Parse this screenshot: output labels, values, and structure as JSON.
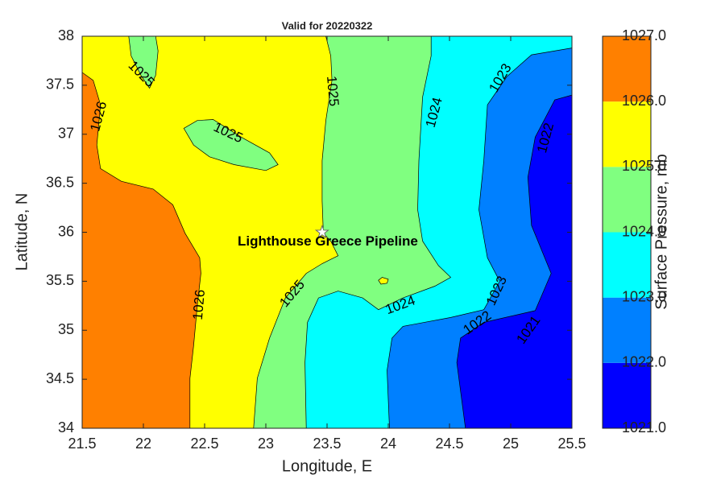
{
  "chart_data": {
    "type": "contour",
    "title": "Valid for 20220322",
    "x_label": "Longitude, E",
    "y_label": "Latitude, N",
    "xlim": [
      21.5,
      25.5
    ],
    "ylim": [
      34,
      38
    ],
    "xticks": [
      21.5,
      22,
      22.5,
      23,
      23.5,
      24,
      24.5,
      25,
      25.5
    ],
    "yticks": [
      34,
      34.5,
      35,
      35.5,
      36,
      36.5,
      37,
      37.5,
      38
    ],
    "colorbar": {
      "label": "Surface Pressure, mb",
      "ticks": [
        {
          "value": 1021,
          "label": "1021.0"
        },
        {
          "value": 1022,
          "label": "1022.0"
        },
        {
          "value": 1023,
          "label": "1023.0"
        },
        {
          "value": 1024,
          "label": "1024.0"
        },
        {
          "value": 1025,
          "label": "1025.0"
        },
        {
          "value": 1026,
          "label": "1026.0"
        },
        {
          "value": 1027,
          "label": "1027.0"
        }
      ],
      "colors": [
        "#0000ff",
        "#0080ff",
        "#00ffff",
        "#80ff80",
        "#ffff00",
        "#ff8000"
      ]
    },
    "regions": [
      {
        "level": 1021,
        "polygon": [
          [
            21.5,
            38
          ],
          [
            25.5,
            38
          ],
          [
            25.5,
            34
          ],
          [
            21.5,
            34
          ]
        ]
      },
      {
        "level": 1022,
        "polygon": [
          [
            21.5,
            38
          ],
          [
            25.5,
            38
          ],
          [
            25.5,
            37.4
          ],
          [
            25.36,
            37.35
          ],
          [
            25.2,
            36.97
          ],
          [
            25.14,
            36.56
          ],
          [
            25.17,
            36.07
          ],
          [
            25.33,
            35.58
          ],
          [
            25.2,
            35.2
          ],
          [
            24.78,
            35.08
          ],
          [
            24.59,
            34.92
          ],
          [
            24.56,
            34.67
          ],
          [
            24.63,
            34
          ],
          [
            21.5,
            34
          ]
        ]
      },
      {
        "level": 1023,
        "polygon": [
          [
            21.5,
            38
          ],
          [
            25.5,
            38
          ],
          [
            25.5,
            37.88
          ],
          [
            25.17,
            37.81
          ],
          [
            24.97,
            37.59
          ],
          [
            24.81,
            37.3
          ],
          [
            24.78,
            36.73
          ],
          [
            24.74,
            36.23
          ],
          [
            24.81,
            35.74
          ],
          [
            24.91,
            35.5
          ],
          [
            24.78,
            35.21
          ],
          [
            24.51,
            35.13
          ],
          [
            24.12,
            35.04
          ],
          [
            24.03,
            34.92
          ],
          [
            23.99,
            34.59
          ],
          [
            24.01,
            34
          ],
          [
            21.5,
            34
          ]
        ]
      },
      {
        "level": 1024,
        "polygon": [
          [
            21.5,
            38
          ],
          [
            24.35,
            38
          ],
          [
            24.35,
            37.8
          ],
          [
            24.28,
            37.38
          ],
          [
            24.25,
            36.73
          ],
          [
            24.24,
            36.23
          ],
          [
            24.28,
            35.91
          ],
          [
            24.41,
            35.66
          ],
          [
            24.51,
            35.54
          ],
          [
            24.38,
            35.45
          ],
          [
            24.12,
            35.33
          ],
          [
            23.92,
            35.21
          ],
          [
            23.79,
            35.33
          ],
          [
            23.59,
            35.4
          ],
          [
            23.43,
            35.33
          ],
          [
            23.34,
            35.08
          ],
          [
            23.32,
            34.67
          ],
          [
            23.33,
            34
          ],
          [
            21.5,
            34
          ]
        ]
      },
      {
        "level": 1025,
        "polygon": [
          [
            21.5,
            38
          ],
          [
            23.49,
            38
          ],
          [
            23.53,
            37.8
          ],
          [
            23.54,
            37.55
          ],
          [
            23.49,
            37.14
          ],
          [
            23.46,
            36.73
          ],
          [
            23.46,
            36.32
          ],
          [
            23.47,
            35.99
          ],
          [
            23.53,
            35.91
          ],
          [
            23.59,
            35.76
          ],
          [
            23.54,
            35.73
          ],
          [
            23.46,
            35.68
          ],
          [
            23.33,
            35.58
          ],
          [
            23.16,
            35.33
          ],
          [
            23.03,
            34.92
          ],
          [
            22.93,
            34.51
          ],
          [
            22.9,
            34
          ],
          [
            21.5,
            34
          ]
        ]
      },
      {
        "level": 1024,
        "polygon": [
          [
            21.88,
            38
          ],
          [
            21.9,
            37.8
          ],
          [
            21.98,
            37.6
          ],
          [
            22.05,
            37.47
          ],
          [
            22.1,
            37.6
          ],
          [
            22.12,
            37.85
          ],
          [
            22.1,
            38
          ]
        ]
      },
      {
        "level": 1024,
        "polygon": [
          [
            22.33,
            37.06
          ],
          [
            22.44,
            37.14
          ],
          [
            22.57,
            37.15
          ],
          [
            22.8,
            36.97
          ],
          [
            23.03,
            36.81
          ],
          [
            23.1,
            36.69
          ],
          [
            23.0,
            36.63
          ],
          [
            22.74,
            36.69
          ],
          [
            22.54,
            36.77
          ],
          [
            22.41,
            36.89
          ]
        ]
      },
      {
        "level": 1025,
        "polygon": [
          [
            23.92,
            35.51
          ],
          [
            23.95,
            35.54
          ],
          [
            24.0,
            35.52
          ],
          [
            23.99,
            35.48
          ],
          [
            23.94,
            35.47
          ]
        ]
      },
      {
        "level": 1026,
        "polygon": [
          [
            21.5,
            37.63
          ],
          [
            21.59,
            37.55
          ],
          [
            21.65,
            37.3
          ],
          [
            21.62,
            36.89
          ],
          [
            21.65,
            36.65
          ],
          [
            21.82,
            36.52
          ],
          [
            22.08,
            36.44
          ],
          [
            22.24,
            36.28
          ],
          [
            22.34,
            35.99
          ],
          [
            22.46,
            35.74
          ],
          [
            22.47,
            35.58
          ],
          [
            22.44,
            35.25
          ],
          [
            22.41,
            34.84
          ],
          [
            22.38,
            34.51
          ],
          [
            22.38,
            34
          ],
          [
            21.5,
            34
          ]
        ]
      }
    ],
    "contour_labels": [
      {
        "value": 1025,
        "lon": 21.98,
        "lat": 37.61
      },
      {
        "value": 1026,
        "lon": 21.64,
        "lat": 37.18
      },
      {
        "value": 1025,
        "lon": 22.69,
        "lat": 37.01
      },
      {
        "value": 1025,
        "lon": 23.54,
        "lat": 37.44
      },
      {
        "value": 1024,
        "lon": 24.38,
        "lat": 37.22
      },
      {
        "value": 1023,
        "lon": 24.92,
        "lat": 37.57
      },
      {
        "value": 1022,
        "lon": 25.29,
        "lat": 36.96
      },
      {
        "value": 1026,
        "lon": 22.46,
        "lat": 35.26
      },
      {
        "value": 1025,
        "lon": 23.22,
        "lat": 35.37
      },
      {
        "value": 1024,
        "lon": 24.1,
        "lat": 35.25
      },
      {
        "value": 1023,
        "lon": 24.89,
        "lat": 35.4
      },
      {
        "value": 1022,
        "lon": 24.73,
        "lat": 35.07
      },
      {
        "value": 1021,
        "lon": 25.15,
        "lat": 35.0
      }
    ],
    "annotation": {
      "text": "Lighthouse Greece Pipeline",
      "lon": 23.46,
      "lat": 36.0
    }
  }
}
